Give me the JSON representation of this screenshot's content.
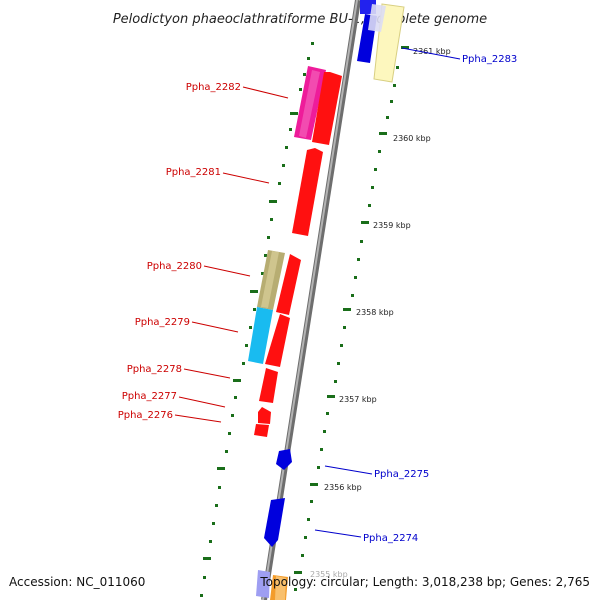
{
  "title": "Pelodictyon phaeoclathratiforme BU-1, complete genome",
  "footer": {
    "accession": "Accession: NC_011060",
    "topology": "Topology: circular; Length: 3,018,238 bp; Genes: 2,765"
  },
  "colors": {
    "left_label": "#cc0000",
    "right_label": "#0000cc",
    "backbone": "#888888",
    "tick": "#1a6e1a"
  },
  "kbp_labels": [
    "2361 kbp",
    "2360 kbp",
    "2359 kbp",
    "2358 kbp",
    "2357 kbp",
    "2356 kbp",
    "2355 kbp"
  ],
  "genes_left": [
    "Ppha_2282",
    "Ppha_2281",
    "Ppha_2280",
    "Ppha_2279",
    "Ppha_2278",
    "Ppha_2277",
    "Ppha_2276"
  ],
  "genes_right": [
    "Ppha_2283",
    "Ppha_2275",
    "Ppha_2274"
  ]
}
